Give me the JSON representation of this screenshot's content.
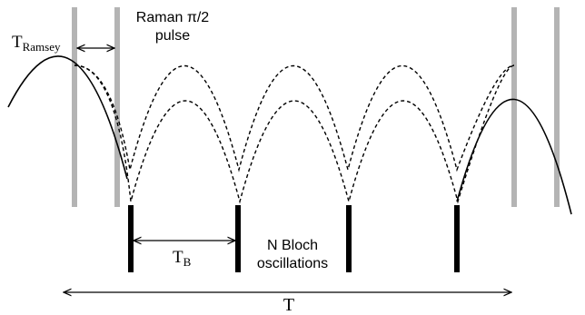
{
  "labels": {
    "t_ramsey_main": "T",
    "t_ramsey_sub": "Ramsey",
    "raman_line1": "Raman π/2",
    "raman_line2": "pulse",
    "t_b_main": "T",
    "t_b_sub": "B",
    "bloch_line1": "N Bloch",
    "bloch_line2": "oscillations",
    "t_total": "T"
  },
  "colors": {
    "raman_pulse": "#b4b4b4",
    "bloch_pulse": "#000000",
    "trajectory": "#000000"
  },
  "icons": {
    "arrow": "double-headed-arrow"
  }
}
